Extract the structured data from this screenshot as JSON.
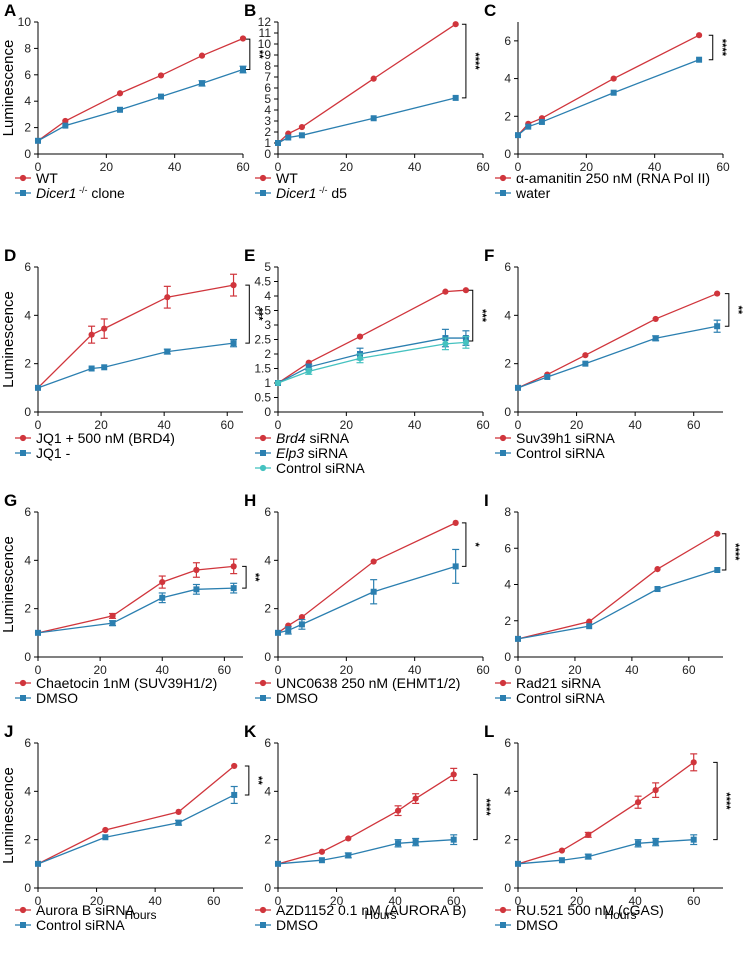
{
  "colors": {
    "red": "#d0353c",
    "blue": "#2b7fb0",
    "teal": "#45c2c0"
  },
  "chart_data": [
    {
      "type": "line",
      "panel": "A",
      "ylabel": "Luminescence",
      "xlabel": "",
      "xlim": [
        0,
        60
      ],
      "ylim": [
        0,
        10
      ],
      "xticks": [
        0,
        20,
        40,
        60
      ],
      "yticks": [
        0,
        2,
        4,
        6,
        8,
        10
      ],
      "significance": "**",
      "sig_range": [
        6.4,
        8.7
      ],
      "sig_x": 62,
      "series": [
        {
          "name": "WT",
          "name_plain": "",
          "name_italic": "",
          "name_rest": "",
          "color": "red",
          "marker": "circle",
          "x": [
            0,
            8,
            24,
            36,
            48,
            60
          ],
          "y": [
            1.0,
            2.5,
            4.6,
            5.95,
            7.45,
            8.75
          ],
          "err": [
            0,
            0,
            0,
            0,
            0,
            0
          ]
        },
        {
          "name": "Dicer1 -/- clone",
          "name_plain": "",
          "name_italic": "Dicer1",
          "name_rest": " clone",
          "color": "blue",
          "marker": "square",
          "x": [
            0,
            8,
            24,
            36,
            48,
            60
          ],
          "y": [
            1.0,
            2.15,
            3.35,
            4.35,
            5.35,
            6.4
          ],
          "err": [
            0,
            0,
            0,
            0,
            0.2,
            0.25
          ]
        }
      ]
    },
    {
      "type": "line",
      "panel": "B",
      "ylabel": "",
      "xlabel": "",
      "xlim": [
        0,
        60
      ],
      "ylim": [
        0,
        12
      ],
      "xticks": [
        0,
        20,
        40,
        60
      ],
      "yticks": [
        0,
        1,
        2,
        3,
        4,
        5,
        6,
        7,
        8,
        9,
        10,
        11,
        12
      ],
      "significance": "****",
      "sig_range": [
        5.1,
        11.8
      ],
      "sig_x": 55,
      "series": [
        {
          "name": "WT",
          "name_plain": "",
          "name_italic": "",
          "name_rest": "",
          "color": "red",
          "marker": "circle",
          "x": [
            0,
            3,
            7,
            28,
            52
          ],
          "y": [
            1.0,
            1.85,
            2.45,
            6.85,
            11.8
          ],
          "err": [
            0,
            0,
            0,
            0,
            0
          ]
        },
        {
          "name": "Dicer1 -/- d5",
          "name_plain": "",
          "name_italic": "Dicer1",
          "name_rest": " d5",
          "color": "blue",
          "marker": "square",
          "x": [
            0,
            3,
            7,
            28,
            52
          ],
          "y": [
            1.0,
            1.5,
            1.7,
            3.25,
            5.1
          ],
          "err": [
            0,
            0,
            0,
            0,
            0
          ]
        }
      ]
    },
    {
      "type": "line",
      "panel": "C",
      "ylabel": "",
      "xlabel": "",
      "xlim": [
        0,
        60
      ],
      "ylim": [
        0,
        7
      ],
      "xticks": [
        0,
        20,
        40,
        60
      ],
      "yticks": [
        0,
        2,
        4,
        6
      ],
      "significance": "****",
      "sig_range": [
        5.0,
        6.3
      ],
      "sig_x": 57,
      "series": [
        {
          "name": "α-amanitin 250 nM (RNA Pol II)",
          "name_plain": "",
          "name_italic": "",
          "name_rest": "",
          "color": "red",
          "marker": "circle",
          "x": [
            0,
            3,
            7,
            28,
            53
          ],
          "y": [
            1.0,
            1.6,
            1.9,
            4.0,
            6.3
          ],
          "err": [
            0,
            0,
            0,
            0,
            0
          ]
        },
        {
          "name": "water",
          "name_plain": "",
          "name_italic": "",
          "name_rest": "",
          "color": "blue",
          "marker": "square",
          "x": [
            0,
            3,
            7,
            28,
            53
          ],
          "y": [
            1.0,
            1.45,
            1.7,
            3.25,
            5.0
          ],
          "err": [
            0,
            0,
            0,
            0,
            0
          ]
        }
      ]
    },
    {
      "type": "line",
      "panel": "D",
      "ylabel": "Luminescence",
      "xlabel": "",
      "xlim": [
        0,
        65
      ],
      "ylim": [
        0,
        6
      ],
      "xticks": [
        0,
        20,
        40,
        60
      ],
      "yticks": [
        0,
        2,
        4,
        6
      ],
      "significance": "***",
      "sig_range": [
        2.85,
        5.25
      ],
      "sig_x": 67,
      "series": [
        {
          "name": "JQ1 + 500 nM (BRD4)",
          "name_plain": "",
          "name_italic": "",
          "name_rest": "",
          "color": "red",
          "marker": "circle",
          "x": [
            0,
            17,
            21,
            41,
            62
          ],
          "y": [
            1.0,
            3.2,
            3.45,
            4.75,
            5.25
          ],
          "err": [
            0,
            0.35,
            0.4,
            0.45,
            0.45
          ]
        },
        {
          "name": "JQ1 -",
          "name_plain": "",
          "name_italic": "",
          "name_rest": "",
          "color": "blue",
          "marker": "square",
          "x": [
            0,
            17,
            21,
            41,
            62
          ],
          "y": [
            1.0,
            1.8,
            1.85,
            2.5,
            2.85
          ],
          "err": [
            0,
            0,
            0,
            0.1,
            0.15
          ]
        }
      ]
    },
    {
      "type": "line",
      "panel": "E",
      "ylabel": "",
      "xlabel": "",
      "xlim": [
        0,
        60
      ],
      "ylim": [
        0,
        5
      ],
      "xticks": [
        0,
        20,
        40,
        60
      ],
      "yticks": [
        0,
        0.5,
        1,
        1.5,
        2,
        2.5,
        3,
        3.5,
        4,
        4.5,
        5
      ],
      "significance": "***",
      "sig_range": [
        2.45,
        4.2
      ],
      "sig_x": 57,
      "series": [
        {
          "name": "Brd4 siRNA",
          "name_plain": "",
          "name_italic": "Brd4",
          "name_rest": " siRNA",
          "color": "red",
          "marker": "circle",
          "x": [
            0,
            9,
            24,
            49,
            55
          ],
          "y": [
            1.0,
            1.7,
            2.6,
            4.15,
            4.2
          ],
          "err": [
            0,
            0,
            0,
            0,
            0
          ]
        },
        {
          "name": "Elp3 siRNA",
          "name_plain": "",
          "name_italic": "Elp3",
          "name_rest": " siRNA",
          "color": "blue",
          "marker": "square",
          "x": [
            0,
            9,
            24,
            49,
            55
          ],
          "y": [
            1.0,
            1.55,
            2.0,
            2.55,
            2.55
          ],
          "err": [
            0,
            0.1,
            0.2,
            0.3,
            0.25
          ]
        },
        {
          "name": "Control siRNA",
          "name_plain": "",
          "name_italic": "",
          "name_rest": "",
          "color": "teal",
          "marker": "circle",
          "x": [
            0,
            9,
            24,
            49,
            55
          ],
          "y": [
            1.0,
            1.4,
            1.85,
            2.35,
            2.4
          ],
          "err": [
            0,
            0.1,
            0.15,
            0.2,
            0.2
          ]
        }
      ]
    },
    {
      "type": "line",
      "panel": "F",
      "ylabel": "",
      "xlabel": "",
      "xlim": [
        0,
        70
      ],
      "ylim": [
        0,
        6
      ],
      "xticks": [
        0,
        20,
        40,
        60
      ],
      "yticks": [
        0,
        2,
        4,
        6
      ],
      "significance": "**",
      "sig_range": [
        3.55,
        4.9
      ],
      "sig_x": 72,
      "series": [
        {
          "name": "Suv39h1 siRNA",
          "name_plain": "",
          "name_italic": "",
          "name_rest": "",
          "color": "red",
          "marker": "circle",
          "x": [
            0,
            10,
            23,
            47,
            68
          ],
          "y": [
            1.0,
            1.55,
            2.35,
            3.85,
            4.9
          ],
          "err": [
            0,
            0,
            0,
            0,
            0
          ]
        },
        {
          "name": "Control siRNA",
          "name_plain": "",
          "name_italic": "",
          "name_rest": "",
          "color": "blue",
          "marker": "square",
          "x": [
            0,
            10,
            23,
            47,
            68
          ],
          "y": [
            1.0,
            1.45,
            2.0,
            3.05,
            3.55
          ],
          "err": [
            0,
            0,
            0,
            0.1,
            0.25
          ]
        }
      ]
    },
    {
      "type": "line",
      "panel": "G",
      "ylabel": "Luminescence",
      "xlabel": "",
      "xlim": [
        0,
        66
      ],
      "ylim": [
        0,
        6
      ],
      "xticks": [
        0,
        20,
        40,
        60
      ],
      "yticks": [
        0,
        2,
        4,
        6
      ],
      "significance": "**",
      "sig_range": [
        2.85,
        3.75
      ],
      "sig_x": 67,
      "series": [
        {
          "name": "Chaetocin 1nM (SUV39H1/2)",
          "name_plain": "",
          "name_italic": "",
          "name_rest": "",
          "color": "red",
          "marker": "circle",
          "x": [
            0,
            24,
            40,
            51,
            63
          ],
          "y": [
            1.0,
            1.7,
            3.1,
            3.6,
            3.75
          ],
          "err": [
            0,
            0.1,
            0.25,
            0.3,
            0.3
          ]
        },
        {
          "name": "DMSO",
          "name_plain": "",
          "name_italic": "",
          "name_rest": "",
          "color": "blue",
          "marker": "square",
          "x": [
            0,
            24,
            40,
            51,
            63
          ],
          "y": [
            1.0,
            1.4,
            2.45,
            2.8,
            2.85
          ],
          "err": [
            0,
            0.1,
            0.2,
            0.2,
            0.2
          ]
        }
      ]
    },
    {
      "type": "line",
      "panel": "H",
      "ylabel": "",
      "xlabel": "",
      "xlim": [
        0,
        60
      ],
      "ylim": [
        0,
        6
      ],
      "xticks": [
        0,
        20,
        40,
        60
      ],
      "yticks": [
        0,
        2,
        4,
        6
      ],
      "significance": "*",
      "sig_range": [
        3.75,
        5.55
      ],
      "sig_x": 55,
      "series": [
        {
          "name": "UNC0638 250 nM (EHMT1/2)",
          "name_plain": "",
          "name_italic": "",
          "name_rest": "",
          "color": "red",
          "marker": "circle",
          "x": [
            0,
            3,
            7,
            28,
            52
          ],
          "y": [
            1.0,
            1.3,
            1.65,
            3.95,
            5.55
          ],
          "err": [
            0,
            0,
            0,
            0,
            0
          ]
        },
        {
          "name": "DMSO",
          "name_plain": "",
          "name_italic": "",
          "name_rest": "",
          "color": "blue",
          "marker": "square",
          "x": [
            0,
            3,
            7,
            28,
            52
          ],
          "y": [
            1.0,
            1.1,
            1.35,
            2.7,
            3.75
          ],
          "err": [
            0,
            0.15,
            0.2,
            0.5,
            0.7
          ]
        }
      ]
    },
    {
      "type": "line",
      "panel": "I",
      "ylabel": "",
      "xlabel": "",
      "xlim": [
        0,
        72
      ],
      "ylim": [
        0,
        8
      ],
      "xticks": [
        0,
        20,
        40,
        60
      ],
      "yticks": [
        0,
        2,
        4,
        6,
        8
      ],
      "significance": "****",
      "sig_range": [
        4.8,
        6.8
      ],
      "sig_x": 73,
      "series": [
        {
          "name": "Rad21 siRNA",
          "name_plain": "",
          "name_italic": "",
          "name_rest": "",
          "color": "red",
          "marker": "circle",
          "x": [
            0,
            25,
            49,
            70
          ],
          "y": [
            1.0,
            1.95,
            4.85,
            6.8
          ],
          "err": [
            0,
            0,
            0,
            0
          ]
        },
        {
          "name": "Control siRNA",
          "name_plain": "",
          "name_italic": "",
          "name_rest": "",
          "color": "blue",
          "marker": "square",
          "x": [
            0,
            25,
            49,
            70
          ],
          "y": [
            1.0,
            1.7,
            3.75,
            4.8
          ],
          "err": [
            0,
            0,
            0,
            0
          ]
        }
      ]
    },
    {
      "type": "line",
      "panel": "J",
      "ylabel": "Luminescence",
      "xlabel": "Hours",
      "xlim": [
        0,
        70
      ],
      "ylim": [
        0,
        6
      ],
      "xticks": [
        0,
        20,
        40,
        60
      ],
      "yticks": [
        0,
        2,
        4,
        6
      ],
      "significance": "**",
      "sig_range": [
        3.85,
        5.05
      ],
      "sig_x": 72,
      "series": [
        {
          "name": "Aurora B siRNA",
          "name_plain": "",
          "name_italic": "",
          "name_rest": "",
          "color": "red",
          "marker": "circle",
          "x": [
            0,
            23,
            48,
            67
          ],
          "y": [
            1.0,
            2.4,
            3.15,
            5.05
          ],
          "err": [
            0,
            0,
            0,
            0
          ]
        },
        {
          "name": "Control siRNA",
          "name_plain": "",
          "name_italic": "",
          "name_rest": "",
          "color": "blue",
          "marker": "square",
          "x": [
            0,
            23,
            48,
            67
          ],
          "y": [
            1.0,
            2.1,
            2.7,
            3.85
          ],
          "err": [
            0,
            0,
            0.1,
            0.35
          ]
        }
      ]
    },
    {
      "type": "line",
      "panel": "K",
      "ylabel": "",
      "xlabel": "Hours",
      "xlim": [
        0,
        70
      ],
      "ylim": [
        0,
        6
      ],
      "xticks": [
        0,
        20,
        40,
        60
      ],
      "yticks": [
        0,
        2,
        4,
        6
      ],
      "significance": "****",
      "sig_range": [
        2.0,
        4.7
      ],
      "sig_x": 68,
      "series": [
        {
          "name": "AZD1152 0.1 nM (AURORA B)",
          "name_plain": "",
          "name_italic": "",
          "name_rest": "",
          "color": "red",
          "marker": "circle",
          "x": [
            0,
            15,
            24,
            41,
            47,
            60
          ],
          "y": [
            1.0,
            1.5,
            2.05,
            3.2,
            3.7,
            4.7
          ],
          "err": [
            0,
            0,
            0,
            0.2,
            0.2,
            0.25
          ]
        },
        {
          "name": "DMSO",
          "name_plain": "",
          "name_italic": "",
          "name_rest": "",
          "color": "blue",
          "marker": "square",
          "x": [
            0,
            15,
            24,
            41,
            47,
            60
          ],
          "y": [
            1.0,
            1.15,
            1.35,
            1.85,
            1.9,
            2.0
          ],
          "err": [
            0,
            0,
            0.1,
            0.15,
            0.15,
            0.2
          ]
        }
      ]
    },
    {
      "type": "line",
      "panel": "L",
      "ylabel": "",
      "xlabel": "Hours",
      "xlim": [
        0,
        70
      ],
      "ylim": [
        0,
        6
      ],
      "xticks": [
        0,
        20,
        40,
        60
      ],
      "yticks": [
        0,
        2,
        4,
        6
      ],
      "significance": "****",
      "sig_range": [
        2.0,
        5.2
      ],
      "sig_x": 68,
      "series": [
        {
          "name": "RU.521 500 nM (cGAS)",
          "name_plain": "",
          "name_italic": "",
          "name_rest": "",
          "color": "red",
          "marker": "circle",
          "x": [
            0,
            15,
            24,
            41,
            47,
            60
          ],
          "y": [
            1.0,
            1.55,
            2.2,
            3.55,
            4.05,
            5.2
          ],
          "err": [
            0,
            0,
            0.1,
            0.25,
            0.3,
            0.35
          ]
        },
        {
          "name": "DMSO",
          "name_plain": "",
          "name_italic": "",
          "name_rest": "",
          "color": "blue",
          "marker": "square",
          "x": [
            0,
            15,
            24,
            41,
            47,
            60
          ],
          "y": [
            1.0,
            1.15,
            1.3,
            1.85,
            1.9,
            2.0
          ],
          "err": [
            0,
            0,
            0.1,
            0.15,
            0.15,
            0.2
          ]
        }
      ]
    }
  ]
}
